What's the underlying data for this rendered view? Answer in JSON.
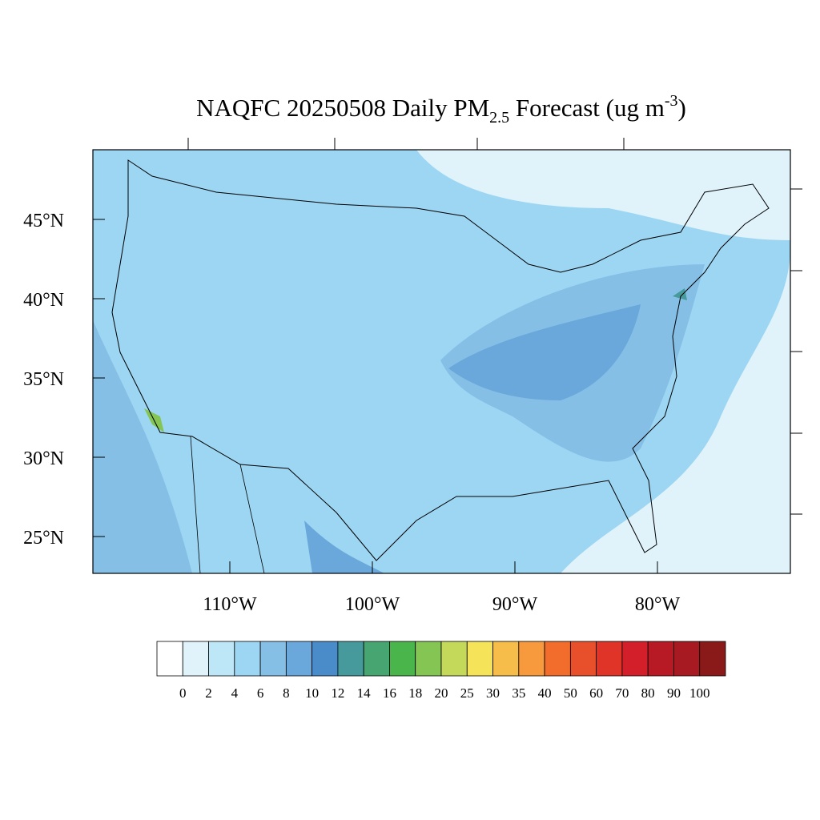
{
  "title": {
    "main": "NAQFC 20250508 Daily PM",
    "subscript": "2.5",
    "middle": " Forecast (ug m",
    "superscript": "-3",
    "end": ")"
  },
  "map": {
    "lat_ticks": [
      {
        "value": 45,
        "label": "45°N"
      },
      {
        "value": 40,
        "label": "40°N"
      },
      {
        "value": 35,
        "label": "35°N"
      },
      {
        "value": 30,
        "label": "30°N"
      },
      {
        "value": 25,
        "label": "25°N"
      }
    ],
    "lon_ticks": [
      {
        "value": -110,
        "label": "110°W"
      },
      {
        "value": -100,
        "label": "100°W"
      },
      {
        "value": -90,
        "label": "90°W"
      },
      {
        "value": -80,
        "label": "80°W"
      }
    ]
  },
  "colorbar": {
    "levels": [
      0,
      2,
      4,
      6,
      8,
      10,
      12,
      14,
      16,
      18,
      20,
      25,
      30,
      35,
      40,
      50,
      60,
      70,
      80,
      90,
      100
    ],
    "colors": [
      "#ffffff",
      "#e0f3fb",
      "#bde6f7",
      "#9dd6f3",
      "#85bfe6",
      "#6aa8dc",
      "#4a8bc9",
      "#479a9c",
      "#46a570",
      "#4ab54a",
      "#84c553",
      "#c4d85a",
      "#f5e35a",
      "#f7bd4a",
      "#f79a3e",
      "#f26d2b",
      "#e8502c",
      "#df3427",
      "#d21f2a",
      "#b81a25",
      "#a81a22",
      "#8a1a1a"
    ]
  }
}
